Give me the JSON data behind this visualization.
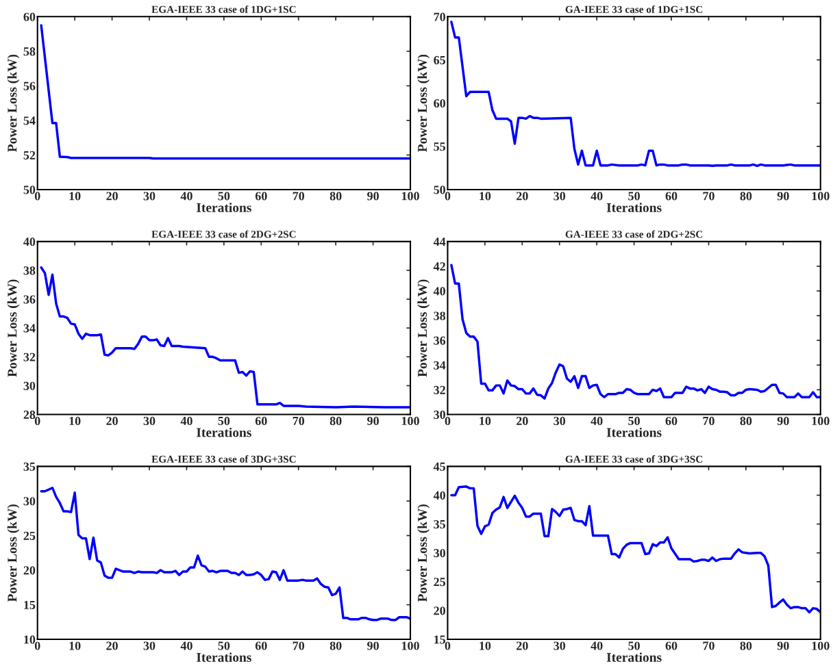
{
  "chart_data": [
    {
      "type": "line",
      "title": "EGA-IEEE 33 case of 1DG+1SC",
      "xlabel": "Iterations",
      "ylabel": "Power Loss (kW)",
      "xlim": [
        0,
        100
      ],
      "xticks": [
        0,
        10,
        20,
        30,
        40,
        50,
        60,
        70,
        80,
        90,
        100
      ],
      "ylim": [
        50,
        60
      ],
      "yticks": [
        50,
        52,
        54,
        56,
        58,
        60
      ],
      "series": [
        {
          "color": "#0000ff",
          "x": [
            1,
            4,
            5,
            6,
            8,
            9,
            30,
            31,
            100
          ],
          "values": [
            59.5,
            53.85,
            53.85,
            51.9,
            51.88,
            51.83,
            51.83,
            51.8,
            51.8
          ]
        }
      ]
    },
    {
      "type": "line",
      "title": "GA-IEEE 33 case of 1DG+1SC",
      "xlabel": "Iterations",
      "ylabel": "Power Loss (kW)",
      "xlim": [
        0,
        100
      ],
      "xticks": [
        0,
        10,
        20,
        30,
        40,
        50,
        60,
        70,
        80,
        90,
        100
      ],
      "ylim": [
        50,
        70
      ],
      "yticks": [
        50,
        55,
        60,
        65,
        70
      ],
      "series": [
        {
          "color": "#0000ff",
          "x": [
            1,
            2,
            3,
            5,
            6,
            11,
            12,
            13,
            16,
            17,
            18,
            19,
            20,
            21,
            22,
            23,
            24,
            25,
            33,
            34,
            35,
            36,
            37,
            39,
            40,
            41,
            43,
            44,
            46,
            51,
            52,
            53,
            54,
            55,
            56,
            57,
            58,
            59,
            62,
            63,
            64,
            65,
            70,
            71,
            72,
            75,
            76,
            77,
            81,
            82,
            83,
            84,
            85,
            90,
            91,
            92,
            93,
            100
          ],
          "values": [
            69.4,
            67.6,
            67.6,
            60.8,
            61.3,
            61.3,
            59.2,
            58.2,
            58.2,
            57.9,
            55.3,
            58.3,
            58.3,
            58.2,
            58.5,
            58.3,
            58.3,
            58.2,
            58.3,
            54.7,
            52.9,
            54.5,
            52.8,
            52.8,
            54.5,
            52.8,
            52.8,
            52.9,
            52.8,
            52.8,
            52.9,
            52.8,
            54.5,
            54.5,
            52.8,
            52.9,
            52.9,
            52.8,
            52.8,
            52.9,
            52.9,
            52.8,
            52.8,
            52.75,
            52.8,
            52.8,
            52.9,
            52.8,
            52.8,
            52.9,
            52.75,
            52.9,
            52.8,
            52.8,
            52.85,
            52.9,
            52.8,
            52.8
          ]
        }
      ]
    },
    {
      "type": "line",
      "title": "EGA-IEEE 33 case of 2DG+2SC",
      "xlabel": "Iterations",
      "ylabel": "Power Loss (kW)",
      "xlim": [
        0,
        100
      ],
      "xticks": [
        0,
        10,
        20,
        30,
        40,
        50,
        60,
        70,
        80,
        90,
        100
      ],
      "ylim": [
        28,
        40
      ],
      "yticks": [
        28,
        30,
        32,
        34,
        36,
        38,
        40
      ],
      "series": [
        {
          "color": "#0000ff",
          "x": [
            1,
            2,
            3,
            4,
            5,
            6,
            7,
            8,
            9,
            10,
            11,
            12,
            13,
            14,
            16,
            17,
            18,
            19,
            20,
            21,
            25,
            26,
            27,
            28,
            29,
            30,
            31,
            32,
            33,
            34,
            35,
            36,
            38,
            39,
            45,
            46,
            47,
            48,
            49,
            53,
            54,
            55,
            56,
            57,
            58,
            59,
            64,
            65,
            66,
            70,
            72,
            80,
            85,
            93,
            100
          ],
          "values": [
            38.2,
            37.8,
            36.3,
            37.7,
            35.7,
            34.8,
            34.8,
            34.7,
            34.3,
            34.25,
            33.6,
            33.25,
            33.6,
            33.5,
            33.5,
            33.55,
            32.15,
            32.1,
            32.3,
            32.6,
            32.6,
            32.55,
            32.9,
            33.4,
            33.4,
            33.15,
            33.15,
            33.2,
            32.8,
            32.75,
            33.3,
            32.75,
            32.75,
            32.7,
            32.6,
            32.0,
            32.0,
            31.9,
            31.75,
            31.75,
            30.9,
            30.95,
            30.7,
            31.0,
            30.95,
            28.7,
            28.7,
            28.8,
            28.6,
            28.6,
            28.55,
            28.5,
            28.55,
            28.5,
            28.5
          ]
        }
      ]
    },
    {
      "type": "line",
      "title": "GA-IEEE 33 case of 2DG+2SC",
      "xlabel": "Iterations",
      "ylabel": "Power Loss (kW)",
      "xlim": [
        0,
        100
      ],
      "xticks": [
        0,
        10,
        20,
        30,
        40,
        50,
        60,
        70,
        80,
        90,
        100
      ],
      "ylim": [
        30,
        44
      ],
      "yticks": [
        30,
        32,
        34,
        36,
        38,
        40,
        42,
        44
      ],
      "series": [
        {
          "color": "#0000ff",
          "x": [
            1,
            2,
            3,
            4,
            5,
            6,
            7,
            8,
            9,
            10,
            11,
            12,
            13,
            14,
            15,
            16,
            17,
            18,
            19,
            20,
            21,
            22,
            23,
            24,
            25,
            26,
            27,
            28,
            29,
            30,
            31,
            32,
            33,
            34,
            35,
            36,
            37,
            38,
            39,
            40,
            41,
            42,
            43,
            45,
            46,
            47,
            48,
            49,
            50,
            51,
            54,
            55,
            56,
            57,
            58,
            60,
            61,
            63,
            64,
            65,
            66,
            67,
            68,
            69,
            70,
            71,
            72,
            73,
            74,
            75,
            76,
            77,
            78,
            79,
            80,
            81,
            83,
            84,
            85,
            87,
            88,
            89,
            90,
            91,
            93,
            94,
            95,
            97,
            98,
            99,
            100
          ],
          "values": [
            42.1,
            40.6,
            40.6,
            37.7,
            36.6,
            36.3,
            36.3,
            35.9,
            32.5,
            32.5,
            31.95,
            31.95,
            32.35,
            32.35,
            31.7,
            32.75,
            32.35,
            32.3,
            32.05,
            32.05,
            31.7,
            31.7,
            32.1,
            31.6,
            31.55,
            31.3,
            32.1,
            32.55,
            33.4,
            34.05,
            33.9,
            32.9,
            32.65,
            33.1,
            32.15,
            33.1,
            33.1,
            32.15,
            32.35,
            32.4,
            31.65,
            31.4,
            31.65,
            31.65,
            31.75,
            31.75,
            32.05,
            32.0,
            31.75,
            31.65,
            31.65,
            32.0,
            31.9,
            32.1,
            31.4,
            31.4,
            31.75,
            31.75,
            32.25,
            32.1,
            32.1,
            31.95,
            32.05,
            31.75,
            32.25,
            32.05,
            32.0,
            31.85,
            31.85,
            31.8,
            31.55,
            31.55,
            31.75,
            31.75,
            32.0,
            32.05,
            32.0,
            31.85,
            31.9,
            32.4,
            32.4,
            31.75,
            31.7,
            31.4,
            31.4,
            31.7,
            31.4,
            31.4,
            31.8,
            31.4,
            31.4
          ]
        }
      ]
    },
    {
      "type": "line",
      "title": "EGA-IEEE 33 case of 3DG+3SC",
      "xlabel": "Iterations",
      "ylabel": "Power Loss (kW)",
      "xlim": [
        0,
        100
      ],
      "xticks": [
        0,
        10,
        20,
        30,
        40,
        50,
        60,
        70,
        80,
        90,
        100
      ],
      "ylim": [
        10,
        35
      ],
      "yticks": [
        10,
        15,
        20,
        25,
        30,
        35
      ],
      "series": [
        {
          "color": "#0000ff",
          "x": [
            1,
            2,
            4,
            5,
            6,
            7,
            8,
            9,
            10,
            11,
            12,
            13,
            14,
            15,
            16,
            17,
            18,
            19,
            20,
            21,
            23,
            25,
            26,
            27,
            28,
            31,
            32,
            33,
            34,
            36,
            37,
            38,
            39,
            40,
            41,
            42,
            43,
            44,
            45,
            46,
            47,
            48,
            49,
            51,
            52,
            53,
            54,
            55,
            56,
            57,
            58,
            59,
            60,
            61,
            62,
            63,
            64,
            65,
            66,
            67,
            70,
            71,
            72,
            74,
            75,
            76,
            77,
            78,
            79,
            80,
            81,
            82,
            83,
            84,
            86,
            87,
            88,
            89,
            90,
            91,
            92,
            94,
            95,
            96,
            97,
            99,
            100
          ],
          "values": [
            31.4,
            31.4,
            31.9,
            30.6,
            29.7,
            28.5,
            28.5,
            28.4,
            31.2,
            25.1,
            24.6,
            24.6,
            21.6,
            24.7,
            21.4,
            21.1,
            19.2,
            18.9,
            18.9,
            20.2,
            19.8,
            19.8,
            19.6,
            19.8,
            19.7,
            19.7,
            19.6,
            20.0,
            19.7,
            19.7,
            19.9,
            19.3,
            19.8,
            19.8,
            20.4,
            20.4,
            22.1,
            20.7,
            20.5,
            19.8,
            19.9,
            19.7,
            19.9,
            19.9,
            19.6,
            19.6,
            19.3,
            19.8,
            19.3,
            19.3,
            19.4,
            19.7,
            19.3,
            18.6,
            18.7,
            19.8,
            19.7,
            18.6,
            20.0,
            18.5,
            18.5,
            18.6,
            18.5,
            18.5,
            18.8,
            18.0,
            17.6,
            17.5,
            16.4,
            16.6,
            17.5,
            13.1,
            13.1,
            12.9,
            12.9,
            13.1,
            13.1,
            12.9,
            12.8,
            12.8,
            13.0,
            13.0,
            12.8,
            12.8,
            13.2,
            13.2,
            13.0
          ]
        }
      ]
    },
    {
      "type": "line",
      "title": "GA-IEEE 33 case of 3DG+3SC",
      "xlabel": "Iterations",
      "ylabel": "Power Loss (kW)",
      "xlim": [
        0,
        100
      ],
      "xticks": [
        0,
        10,
        20,
        30,
        40,
        50,
        60,
        70,
        80,
        90,
        100
      ],
      "ylim": [
        15,
        45
      ],
      "yticks": [
        15,
        20,
        25,
        30,
        35,
        40,
        45
      ],
      "series": [
        {
          "color": "#0000ff",
          "x": [
            1,
            2,
            3,
            5,
            6,
            7,
            8,
            9,
            10,
            11,
            12,
            13,
            14,
            15,
            16,
            18,
            19,
            20,
            21,
            22,
            23,
            25,
            26,
            27,
            28,
            29,
            30,
            31,
            32,
            33,
            34,
            35,
            36,
            37,
            38,
            39,
            43,
            44,
            45,
            46,
            47,
            48,
            49,
            52,
            53,
            54,
            55,
            56,
            57,
            58,
            59,
            60,
            62,
            65,
            66,
            67,
            68,
            69,
            70,
            71,
            72,
            73,
            74,
            76,
            77,
            78,
            79,
            80,
            81,
            83,
            84,
            85,
            86,
            87,
            88,
            89,
            90,
            91,
            92,
            93,
            94,
            95,
            96,
            97,
            98,
            99,
            100
          ],
          "values": [
            40.0,
            40.0,
            41.4,
            41.5,
            41.2,
            41.2,
            34.7,
            33.3,
            34.6,
            34.9,
            36.9,
            37.5,
            37.9,
            39.7,
            37.8,
            39.9,
            38.7,
            37.8,
            36.3,
            36.3,
            36.8,
            36.8,
            32.9,
            32.9,
            37.6,
            37.1,
            36.4,
            37.5,
            37.6,
            37.8,
            35.7,
            35.5,
            35.5,
            34.8,
            38.1,
            33.0,
            33.0,
            29.8,
            29.8,
            29.2,
            30.7,
            31.4,
            31.7,
            31.7,
            29.8,
            29.9,
            31.5,
            31.2,
            31.8,
            31.8,
            32.7,
            30.8,
            28.9,
            28.9,
            28.5,
            28.6,
            28.8,
            28.8,
            28.6,
            29.2,
            28.6,
            28.9,
            29.0,
            29.0,
            29.9,
            30.6,
            30.1,
            30.0,
            29.9,
            30.0,
            30.0,
            29.4,
            27.8,
            20.6,
            20.8,
            21.4,
            21.9,
            21.0,
            20.4,
            20.6,
            20.6,
            20.4,
            20.4,
            19.7,
            20.4,
            20.3,
            19.7
          ]
        }
      ]
    }
  ]
}
